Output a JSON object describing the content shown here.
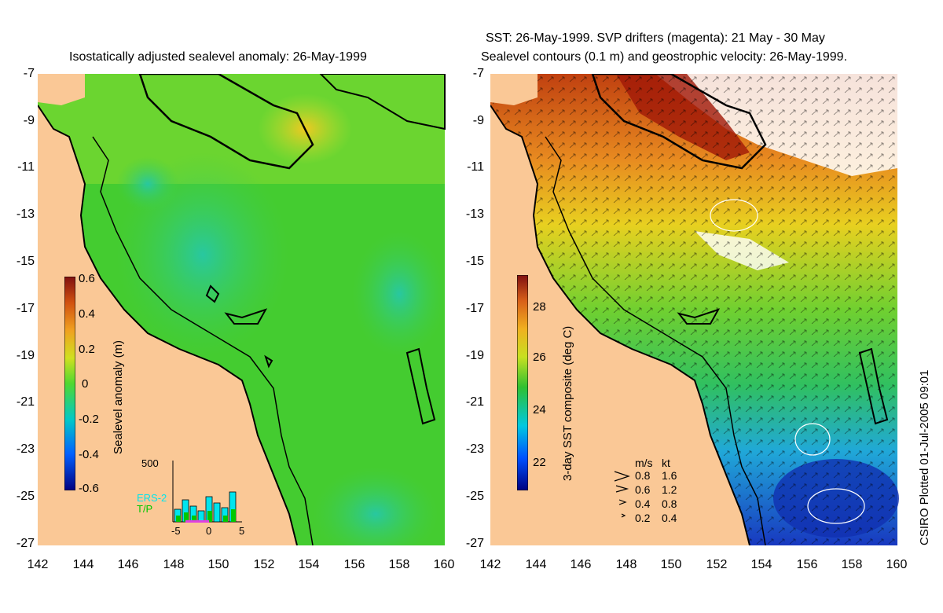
{
  "left_panel": {
    "title": "Isostatically adjusted sealevel anomaly: 26-May-1999",
    "colorbar": {
      "label": "Sealevel anomaly (m)",
      "ticks": [
        "0.6",
        "0.4",
        "0.2",
        "0",
        "-0.2",
        "-0.4",
        "-0.6"
      ],
      "min": -0.6,
      "max": 0.6
    },
    "histogram": {
      "ymax_label": "500",
      "series_labels": [
        "ERS-2",
        "T/P"
      ],
      "x_ticks": [
        "-5",
        "0",
        "5"
      ],
      "ers2_color": "#00e5ee",
      "tp_color": "#00c800"
    }
  },
  "right_panel": {
    "title_line1": "SST: 26-May-1999. SVP drifters (magenta): 21 May - 30 May",
    "title_line2": "Sealevel contours (0.1 m) and geostrophic velocity: 26-May-1999.",
    "colorbar": {
      "label": "3-day SST composite (deg C)",
      "ticks": [
        "28",
        "26",
        "24",
        "22"
      ],
      "min": 21.2,
      "max": 29.2
    },
    "velocity_legend": {
      "header_ms": "m/s",
      "header_kt": "kt",
      "rows": [
        {
          "ms": "0.8",
          "kt": "1.6"
        },
        {
          "ms": "0.6",
          "kt": "1.2"
        },
        {
          "ms": "0.4",
          "kt": "0.8"
        },
        {
          "ms": "0.2",
          "kt": "0.4"
        }
      ]
    }
  },
  "axes": {
    "y_ticks": [
      "-7",
      "-9",
      "-11",
      "-13",
      "-15",
      "-17",
      "-19",
      "-21",
      "-23",
      "-25",
      "-27"
    ],
    "x_ticks": [
      "142",
      "144",
      "146",
      "148",
      "150",
      "152",
      "154",
      "156",
      "158",
      "160"
    ]
  },
  "credit": "CSIRO Plotted 01-Jul-2005 09:01",
  "colors": {
    "land": "#fac896",
    "ocean_mid": "#46d23c",
    "ocean_low": "#2ac89a",
    "sst_hot": "#b43214",
    "sst_cold": "#1446c8"
  }
}
